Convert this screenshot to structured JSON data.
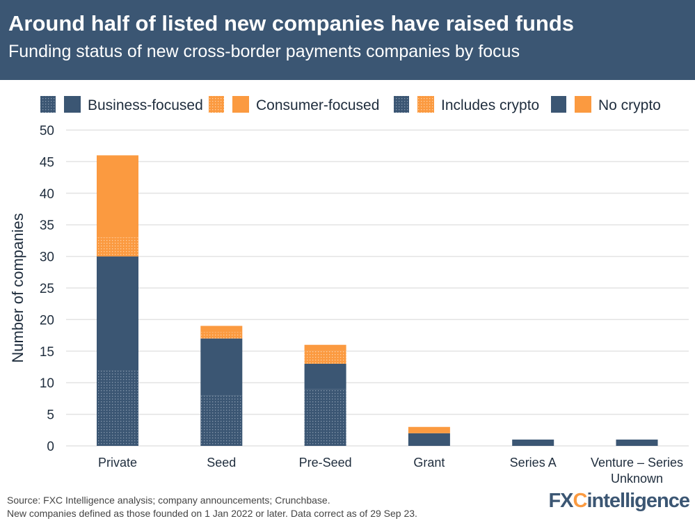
{
  "header": {
    "title": "Around half of listed new companies have raised funds",
    "subtitle": "Funding status of new cross-border payments companies by focus"
  },
  "footer": {
    "source": "Source: FXC Intelligence analysis; company announcements; Crunchbase.",
    "note": "New companies defined as those founded on 1 Jan 2022 or later. Data correct as of 29 Sep 23."
  },
  "logo": {
    "text": "FXCintelligence"
  },
  "colors": {
    "business": "#3b5673",
    "consumer": "#fb9a40",
    "header": "#3b5673"
  },
  "chart_data": {
    "type": "bar",
    "stacked": true,
    "ylabel": "Number of companies",
    "ylim": [
      0,
      50
    ],
    "yticks": [
      0,
      5,
      10,
      15,
      20,
      25,
      30,
      35,
      40,
      45,
      50
    ],
    "grid": true,
    "legend_placement": "top",
    "legend": [
      "Business-focused",
      "Consumer-focused",
      "Includes crypto",
      "No crypto"
    ],
    "categories": [
      "Private",
      "Seed",
      "Pre-Seed",
      "Grant",
      "Series A",
      "Venture – Series Unknown"
    ],
    "series": [
      {
        "focus": "Business-focused",
        "crypto": "Includes crypto",
        "values": [
          12,
          8,
          9,
          0,
          0,
          0
        ]
      },
      {
        "focus": "Business-focused",
        "crypto": "No crypto",
        "values": [
          18,
          9,
          4,
          2,
          1,
          1
        ]
      },
      {
        "focus": "Consumer-focused",
        "crypto": "Includes crypto",
        "values": [
          3,
          1,
          2,
          0,
          0,
          0
        ]
      },
      {
        "focus": "Consumer-focused",
        "crypto": "No crypto",
        "values": [
          13,
          1,
          1,
          1,
          0,
          0
        ]
      }
    ]
  }
}
